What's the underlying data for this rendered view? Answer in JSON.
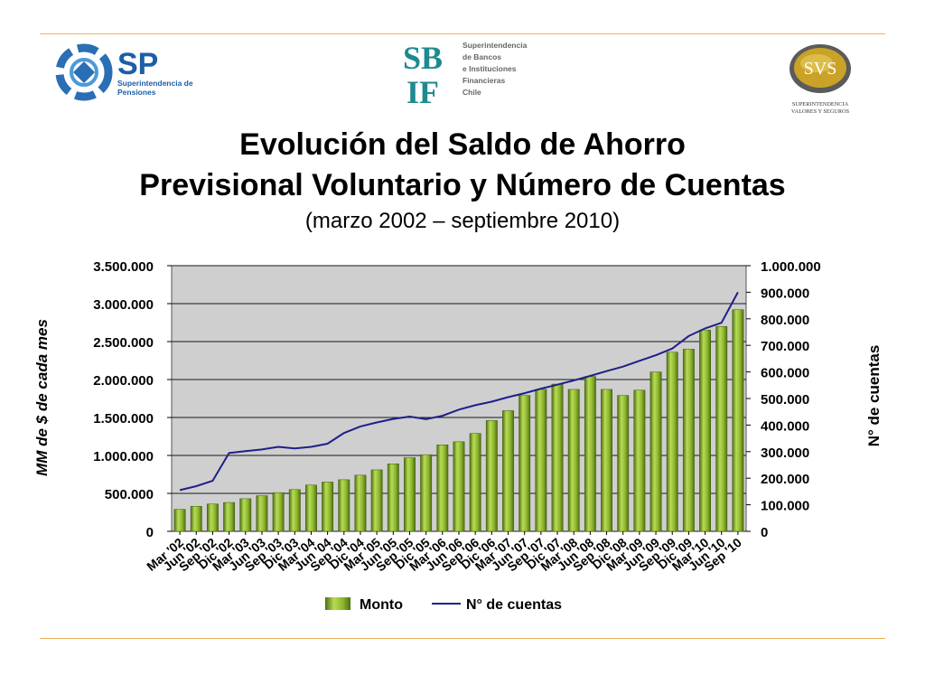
{
  "header": {
    "sp_logo": {
      "abbr": "SP",
      "text_line1": "Superintendencia de",
      "text_line2": "Pensiones"
    },
    "sbif_logo": {
      "abbr_line1": "SB",
      "abbr_line2": "IF",
      "text_lines": [
        "Superintendencia",
        "de Bancos",
        "e Instituciones",
        "Financieras",
        "Chile"
      ]
    },
    "svs_logo": {
      "abbr": "SVS",
      "text_line1": "SUPERINTENDENCIA",
      "text_line2": "VALORES Y SEGUROS"
    }
  },
  "title": {
    "line1": "Evolución del Saldo de Ahorro",
    "line2": "Previsional Voluntario y Número de Cuentas",
    "subtitle": "(marzo 2002 – septiembre 2010)"
  },
  "colors": {
    "bar": "#8db52e",
    "line": "#1f1f8a",
    "plot_bg": "#cfcfcf",
    "rule": "#f2b25a"
  },
  "chart_data": {
    "type": "bar",
    "categories": [
      "Mar '02",
      "Jun '02",
      "Sep '02",
      "Dic '02",
      "Mar '03",
      "Jun '03",
      "Sep '03",
      "Dic '03",
      "Mar '04",
      "Jun '04",
      "Sep '04",
      "Dic '04",
      "Mar '05",
      "Jun '05",
      "Sep '05",
      "Dic '05",
      "Mar '06",
      "Jun '06",
      "Sep '06",
      "Dic '06",
      "Mar '07",
      "Jun '07",
      "Sep '07",
      "Dic '07",
      "Mar '08",
      "Jun '08",
      "Sep '08",
      "Dic '08",
      "Mar '09",
      "Jun '09",
      "Sep '09",
      "Dic '09",
      "Mar '10",
      "Jun '10",
      "Sep '10"
    ],
    "series": [
      {
        "name": "Monto",
        "type": "bar",
        "axis": "left",
        "values": [
          290000,
          330000,
          360000,
          380000,
          430000,
          470000,
          510000,
          550000,
          610000,
          650000,
          680000,
          740000,
          810000,
          890000,
          970000,
          1010000,
          1140000,
          1180000,
          1290000,
          1460000,
          1590000,
          1790000,
          1870000,
          1940000,
          1870000,
          2040000,
          1870000,
          1790000,
          1860000,
          2100000,
          2360000,
          2400000,
          2650000,
          2700000,
          2920000
        ]
      },
      {
        "name": "N° de cuentas",
        "type": "line",
        "axis": "right",
        "values": [
          155000,
          170000,
          190000,
          295000,
          302000,
          308000,
          318000,
          312000,
          318000,
          330000,
          370000,
          395000,
          410000,
          423000,
          432000,
          422000,
          435000,
          458000,
          475000,
          488000,
          505000,
          520000,
          537000,
          552000,
          568000,
          585000,
          603000,
          620000,
          642000,
          663000,
          688000,
          735000,
          764000,
          785000,
          900000
        ]
      }
    ],
    "ylabel": "MM de $ de cada mes",
    "y2label": "N° de cuentas",
    "ylim": [
      0,
      3500000
    ],
    "y2lim": [
      0,
      1000000
    ],
    "yticks": [
      "0",
      "500.000",
      "1.000.000",
      "1.500.000",
      "2.000.000",
      "2.500.000",
      "3.000.000",
      "3.500.000"
    ],
    "y2ticks": [
      "0",
      "100.000",
      "200.000",
      "300.000",
      "400.000",
      "500.000",
      "600.000",
      "700.000",
      "800.000",
      "900.000",
      "1.000.000"
    ],
    "grid": true,
    "legend": "bottom",
    "legend_entries": [
      "Monto",
      "N° de cuentas"
    ]
  }
}
